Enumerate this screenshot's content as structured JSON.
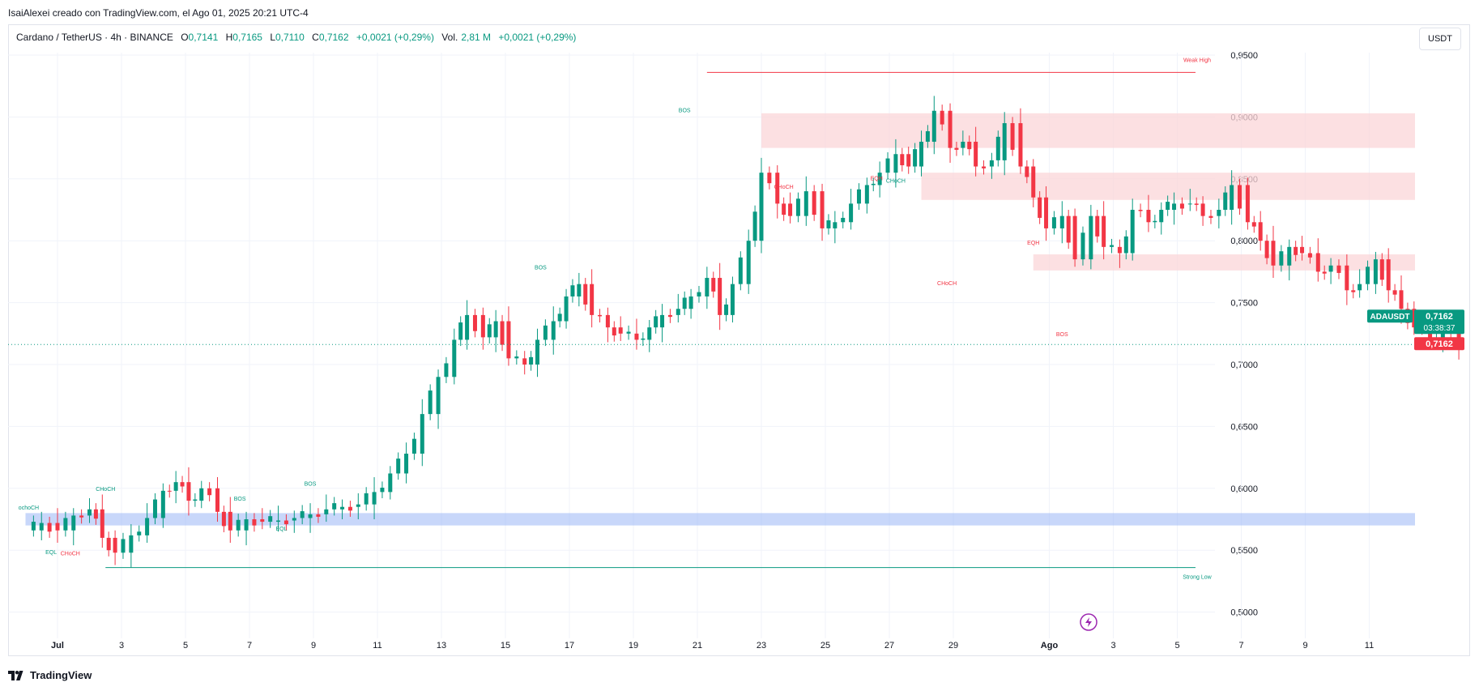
{
  "header": {
    "caption": "IsaiAlexei creado con TradingView.com, el Ago 01, 2025 20:21 UTC-4"
  },
  "legend": {
    "symbol": "Cardano / TetherUS · 4h · BINANCE",
    "open_label": "O",
    "open": "0,7141",
    "high_label": "H",
    "high": "0,7165",
    "low_label": "L",
    "low": "0,7110",
    "close_label": "C",
    "close": "0,7162",
    "change": "+0,0021 (+0,29%)",
    "vol_label": "Vol.",
    "volume": "2,81 M",
    "vol_change": "+0,0021 (+0,29%)"
  },
  "currency": "USDT",
  "branding": {
    "logo_text": "TradingView"
  },
  "price_tags": {
    "symbol": "ADAUSDT",
    "last_price": "0,7162",
    "countdown": "03:38:37",
    "close_tag": "0,7162"
  },
  "colors": {
    "up": "#089981",
    "down": "#f23645",
    "zone_red": "#fbd5d8",
    "zone_blue": "#9bb6f6",
    "grid": "#f0f3fa"
  },
  "chart_data": {
    "type": "candlestick",
    "title": "",
    "ylim": [
      0.485,
      0.975
    ],
    "y_tick_labels": [
      "0,9500",
      "0,9000",
      "0,8500",
      "0,8000",
      "0,7500",
      "0,7000",
      "0,6500",
      "0,6000",
      "0,5500",
      "0,5000"
    ],
    "y_ticks": [
      0.95,
      0.9,
      0.85,
      0.8,
      0.75,
      0.7,
      0.65,
      0.6,
      0.55,
      0.5
    ],
    "x_tick_labels": [
      "Jul",
      "3",
      "5",
      "7",
      "9",
      "11",
      "13",
      "15",
      "17",
      "19",
      "21",
      "23",
      "25",
      "27",
      "29",
      "Ago",
      "3",
      "5",
      "7",
      "9",
      "11"
    ],
    "x_tick_days": [
      1,
      3,
      5,
      7,
      9,
      11,
      13,
      15,
      17,
      19,
      21,
      23,
      25,
      27,
      29,
      32,
      34,
      36,
      38,
      40,
      42
    ],
    "x_range_days": [
      0.0,
      43.0
    ],
    "last_price": 0.7162,
    "close_path": [
      [
        0.0,
        0.566
      ],
      [
        0.5,
        0.572
      ],
      [
        1.0,
        0.566
      ],
      [
        1.5,
        0.578
      ],
      [
        2.0,
        0.583
      ],
      [
        2.4,
        0.56
      ],
      [
        2.8,
        0.548
      ],
      [
        3.3,
        0.562
      ],
      [
        3.8,
        0.576
      ],
      [
        4.3,
        0.598
      ],
      [
        4.7,
        0.605
      ],
      [
        5.1,
        0.59
      ],
      [
        5.5,
        0.6
      ],
      [
        6.0,
        0.581
      ],
      [
        6.4,
        0.566
      ],
      [
        6.9,
        0.575
      ],
      [
        7.4,
        0.573
      ],
      [
        7.9,
        0.574
      ],
      [
        8.4,
        0.576
      ],
      [
        8.9,
        0.579
      ],
      [
        9.4,
        0.583
      ],
      [
        9.9,
        0.585
      ],
      [
        10.4,
        0.587
      ],
      [
        10.9,
        0.597
      ],
      [
        11.4,
        0.612
      ],
      [
        11.9,
        0.628
      ],
      [
        12.4,
        0.66
      ],
      [
        12.9,
        0.69
      ],
      [
        13.4,
        0.72
      ],
      [
        13.8,
        0.74
      ],
      [
        14.3,
        0.722
      ],
      [
        14.7,
        0.735
      ],
      [
        15.1,
        0.705
      ],
      [
        15.6,
        0.7
      ],
      [
        16.0,
        0.72
      ],
      [
        16.5,
        0.735
      ],
      [
        16.9,
        0.755
      ],
      [
        17.3,
        0.765
      ],
      [
        17.7,
        0.74
      ],
      [
        18.2,
        0.73
      ],
      [
        18.6,
        0.725
      ],
      [
        19.1,
        0.72
      ],
      [
        19.5,
        0.73
      ],
      [
        19.9,
        0.74
      ],
      [
        20.4,
        0.745
      ],
      [
        20.8,
        0.755
      ],
      [
        21.3,
        0.77
      ],
      [
        21.7,
        0.74
      ],
      [
        22.1,
        0.765
      ],
      [
        22.6,
        0.8
      ],
      [
        23.0,
        0.855
      ],
      [
        23.5,
        0.83
      ],
      [
        23.9,
        0.82
      ],
      [
        24.4,
        0.84
      ],
      [
        24.9,
        0.81
      ],
      [
        25.3,
        0.815
      ],
      [
        25.8,
        0.83
      ],
      [
        26.3,
        0.845
      ],
      [
        26.7,
        0.855
      ],
      [
        27.2,
        0.87
      ],
      [
        27.6,
        0.86
      ],
      [
        28.0,
        0.88
      ],
      [
        28.4,
        0.905
      ],
      [
        28.9,
        0.875
      ],
      [
        29.3,
        0.88
      ],
      [
        29.7,
        0.86
      ],
      [
        30.2,
        0.865
      ],
      [
        30.6,
        0.895
      ],
      [
        31.1,
        0.86
      ],
      [
        31.5,
        0.835
      ],
      [
        31.9,
        0.81
      ],
      [
        32.4,
        0.82
      ],
      [
        32.8,
        0.785
      ],
      [
        33.3,
        0.82
      ],
      [
        33.7,
        0.795
      ],
      [
        34.2,
        0.79
      ],
      [
        34.6,
        0.825
      ],
      [
        35.1,
        0.815
      ],
      [
        35.5,
        0.825
      ],
      [
        35.9,
        0.83
      ],
      [
        36.4,
        0.83
      ],
      [
        36.8,
        0.82
      ],
      [
        37.3,
        0.825
      ],
      [
        37.7,
        0.845
      ],
      [
        38.2,
        0.815
      ],
      [
        38.6,
        0.8
      ],
      [
        39.0,
        0.78
      ],
      [
        39.5,
        0.795
      ],
      [
        39.9,
        0.79
      ],
      [
        40.4,
        0.775
      ],
      [
        40.8,
        0.78
      ],
      [
        41.3,
        0.76
      ],
      [
        41.7,
        0.765
      ],
      [
        42.2,
        0.785
      ],
      [
        42.6,
        0.76
      ],
      [
        43.0,
        0.745
      ],
      [
        43.4,
        0.73
      ],
      [
        43.9,
        0.72
      ],
      [
        44.3,
        0.728
      ],
      [
        44.8,
        0.716
      ]
    ],
    "zones": [
      {
        "kind": "supply",
        "from_day": 23.0,
        "to_day": 43.0,
        "low": 0.875,
        "high": 0.903
      },
      {
        "kind": "supply",
        "from_day": 28.0,
        "to_day": 43.0,
        "low": 0.833,
        "high": 0.855
      },
      {
        "kind": "supply",
        "from_day": 31.5,
        "to_day": 43.0,
        "low": 0.776,
        "high": 0.789
      },
      {
        "kind": "demand",
        "from_day": 0.0,
        "to_day": 43.0,
        "low": 0.57,
        "high": 0.58
      }
    ],
    "levels": [
      {
        "label": "Weak High",
        "price": 0.936,
        "from_day": 21.3,
        "to_day": 37.5,
        "color": "#f23645"
      },
      {
        "label": "Strong Low",
        "price": 0.536,
        "from_day": 2.5,
        "to_day": 37.5,
        "color": "#089981"
      }
    ],
    "structure_labels": [
      {
        "text": "BOS",
        "day": 20.6,
        "price": 0.904,
        "color": "#089981"
      },
      {
        "text": "BOS",
        "day": 16.1,
        "price": 0.777,
        "color": "#089981"
      },
      {
        "text": "BOS",
        "day": 6.7,
        "price": 0.59,
        "color": "#089981"
      },
      {
        "text": "BOS",
        "day": 8.9,
        "price": 0.602,
        "color": "#089981"
      },
      {
        "text": "CHoCH",
        "day": 2.5,
        "price": 0.598,
        "color": "#089981"
      },
      {
        "text": "CHoCH",
        "day": 1.4,
        "price": 0.546,
        "color": "#f23645"
      },
      {
        "text": "EQL",
        "day": 0.8,
        "price": 0.547,
        "color": "#089981"
      },
      {
        "text": "EQL",
        "day": 8.0,
        "price": 0.566,
        "color": "#089981"
      },
      {
        "text": "CHoCH",
        "day": 23.7,
        "price": 0.842,
        "color": "#f23645"
      },
      {
        "text": "EQH",
        "day": 26.6,
        "price": 0.849,
        "color": "#f23645"
      },
      {
        "text": "CHoCH",
        "day": 27.2,
        "price": 0.847,
        "color": "#089981"
      },
      {
        "text": "CHoCH",
        "day": 28.8,
        "price": 0.764,
        "color": "#f23645"
      },
      {
        "text": "EQH",
        "day": 31.5,
        "price": 0.797,
        "color": "#f23645"
      },
      {
        "text": "BOS",
        "day": 32.4,
        "price": 0.723,
        "color": "#f23645"
      },
      {
        "text": "ochoCH",
        "day": 0.1,
        "price": 0.583,
        "color": "#089981"
      }
    ]
  }
}
